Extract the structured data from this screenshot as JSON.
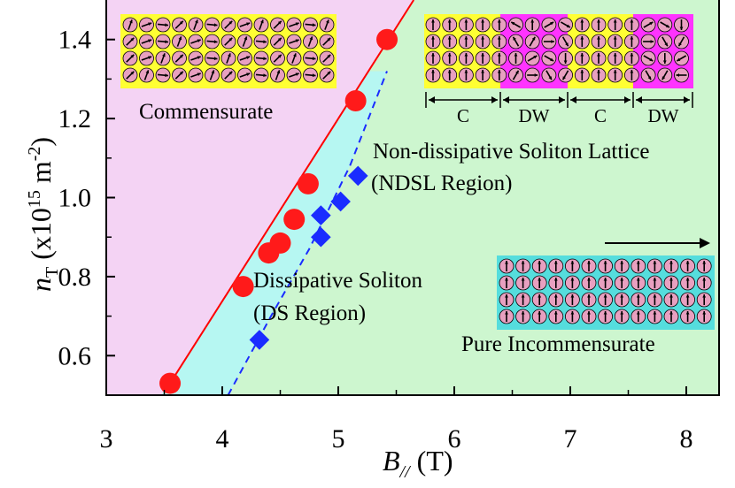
{
  "chart_data": {
    "type": "scatter",
    "xlabel": "B// (T)",
    "ylabel": "nT (x10^15 m^-2)",
    "xlim": [
      3,
      8.5
    ],
    "ylim": [
      0.5,
      1.5
    ],
    "x_ticks": [
      3,
      4,
      5,
      6,
      7,
      8
    ],
    "y_ticks": [
      0.6,
      0.8,
      1.0,
      1.2,
      1.4
    ],
    "x_tick_labels": [
      "3",
      "4",
      "5",
      "6",
      "7",
      "8"
    ],
    "y_tick_labels": [
      "0.6",
      "0.8",
      "1.0",
      "1.2",
      "1.4"
    ],
    "grid": false,
    "series": [
      {
        "marker": "circle",
        "color": "#ff1a1a",
        "points": [
          {
            "x": 3.55,
            "y": 0.53
          },
          {
            "x": 4.18,
            "y": 0.775
          },
          {
            "x": 4.4,
            "y": 0.86
          },
          {
            "x": 4.5,
            "y": 0.885
          },
          {
            "x": 4.62,
            "y": 0.945
          },
          {
            "x": 4.74,
            "y": 1.035
          },
          {
            "x": 5.15,
            "y": 1.245
          },
          {
            "x": 5.42,
            "y": 1.4
          }
        ]
      },
      {
        "marker": "diamond",
        "color": "#1a2cff",
        "points": [
          {
            "x": 4.32,
            "y": 0.64
          },
          {
            "x": 4.85,
            "y": 0.9
          },
          {
            "x": 4.85,
            "y": 0.955
          },
          {
            "x": 5.02,
            "y": 0.99
          },
          {
            "x": 5.17,
            "y": 1.055
          }
        ]
      }
    ],
    "boundary_lines": [
      {
        "style": "solid",
        "color": "#ff0000",
        "points": [
          [
            3.55,
            0.53
          ],
          [
            5.65,
            1.5
          ]
        ]
      },
      {
        "style": "dashed",
        "color": "#1a2cff",
        "points": [
          [
            4.05,
            0.5
          ],
          [
            4.42,
            0.7
          ],
          [
            4.75,
            0.87
          ],
          [
            5.1,
            1.08
          ],
          [
            5.42,
            1.32
          ]
        ]
      }
    ],
    "regions": [
      {
        "name": "commensurate",
        "color": "#f4d3f4",
        "label": "Commensurate"
      },
      {
        "name": "ds",
        "color": "#b6f7f2",
        "label_lines": [
          "Dissipative Soliton",
          "(DS Region)"
        ]
      },
      {
        "name": "ndsl",
        "color": "#cdf6cf",
        "label_lines": [
          "Non-dissipative Soliton Lattice",
          "(NDSL Region)"
        ]
      }
    ],
    "annotations": {
      "pure_incommensurate": "Pure Incommensurate",
      "dimension_labels": [
        "C",
        "DW",
        "C",
        "DW"
      ]
    },
    "inset_colors": {
      "commensurate_frame": "#ffff33",
      "soliton_frame_c": "#ffff33",
      "soliton_frame_dw": "#ff33ff",
      "incommensurate_frame": "#55dddd",
      "spin_circle": "#e8a0c0"
    }
  }
}
